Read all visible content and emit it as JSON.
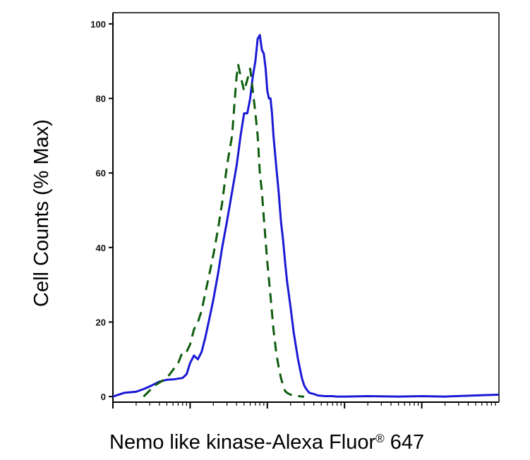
{
  "chart_data": {
    "type": "line",
    "title": "",
    "xlabel": "Nemo like kinase-Alexa Fluor® 647",
    "xlabel_parts": {
      "main": "Nemo like kinase-Alexa Fluor",
      "sup": "®",
      "tail": " 647"
    },
    "ylabel": "Cell Counts (% Max)",
    "x_scale": "log",
    "xlim": [
      0.1,
      10000
    ],
    "ylim": [
      -1.5,
      103
    ],
    "y_ticks": [
      0,
      20,
      40,
      60,
      80,
      100
    ],
    "y_tick_labels": [
      "0",
      "20",
      "40",
      "60",
      "80",
      "100"
    ],
    "x_tick_labels": [],
    "grid": false,
    "legend": "none",
    "series": [
      {
        "color": "#1a1ad6",
        "style": "solid",
        "x": [
          0.1,
          0.14,
          0.2,
          0.25,
          0.32,
          0.4,
          0.5,
          0.6,
          0.7,
          0.8,
          0.9,
          1.0,
          1.12,
          1.26,
          1.41,
          1.58,
          1.78,
          2.0,
          2.3,
          2.6,
          3.0,
          3.5,
          4.0,
          4.5,
          5.0,
          5.5,
          6.0,
          6.5,
          7.0,
          7.5,
          8.0,
          8.5,
          9.0,
          9.5,
          10.0,
          10.5,
          11.0,
          11.5,
          12.0,
          13.0,
          14.0,
          15.0,
          16.0,
          17.0,
          18.0,
          20.0,
          22.0,
          25.0,
          28.0,
          30.0,
          32.0,
          35.0,
          40.0,
          45.0,
          50.0,
          56.0,
          63.0,
          70.0,
          80.0,
          90.0,
          100.0,
          200.0,
          500.0,
          1000.0,
          2000.0,
          5000.0,
          10000.0
        ],
        "y": [
          0,
          1,
          1.3,
          2,
          3,
          4,
          4.5,
          4.6,
          4.8,
          5,
          6,
          9,
          11,
          10,
          12,
          16,
          21,
          26,
          33,
          40,
          47,
          55,
          62,
          70,
          76,
          76,
          80,
          86,
          90,
          96,
          97,
          93,
          92,
          88,
          82,
          80,
          80,
          76,
          70,
          62,
          55,
          47,
          42,
          36,
          31,
          24,
          17,
          10,
          5,
          3,
          2,
          1,
          0.7,
          0.3,
          0.2,
          0.1,
          0.1,
          0.1,
          0,
          0,
          0,
          0.1,
          0,
          0.1,
          0,
          0.3,
          0.5
        ]
      },
      {
        "color": "#0e5c0e",
        "style": "dashed",
        "x": [
          0.25,
          0.35,
          0.5,
          0.7,
          0.8,
          0.9,
          1.0,
          1.12,
          1.26,
          1.41,
          1.58,
          1.78,
          2.0,
          2.3,
          2.6,
          3.0,
          3.5,
          3.8,
          4.0,
          4.2,
          4.5,
          5.0,
          5.5,
          6.0,
          6.5,
          7.0,
          7.5,
          8.0,
          8.5,
          9.0,
          10.0,
          11.0,
          12.0,
          13.0,
          14.0,
          15.0,
          16.0,
          17.0,
          18.0,
          20.0,
          22.0,
          24.0,
          26.0,
          28.0,
          30.0
        ],
        "y": [
          0,
          3,
          5,
          9,
          12,
          12,
          14,
          18,
          20,
          23,
          28,
          33,
          38,
          45,
          52,
          62,
          70,
          80,
          86,
          89,
          86,
          82,
          85,
          88,
          82,
          76,
          70,
          60,
          55,
          48,
          36,
          27,
          18,
          12,
          8,
          5,
          3,
          1.5,
          1,
          0.5,
          0.3,
          0.2,
          0.1,
          0,
          0
        ]
      }
    ]
  }
}
